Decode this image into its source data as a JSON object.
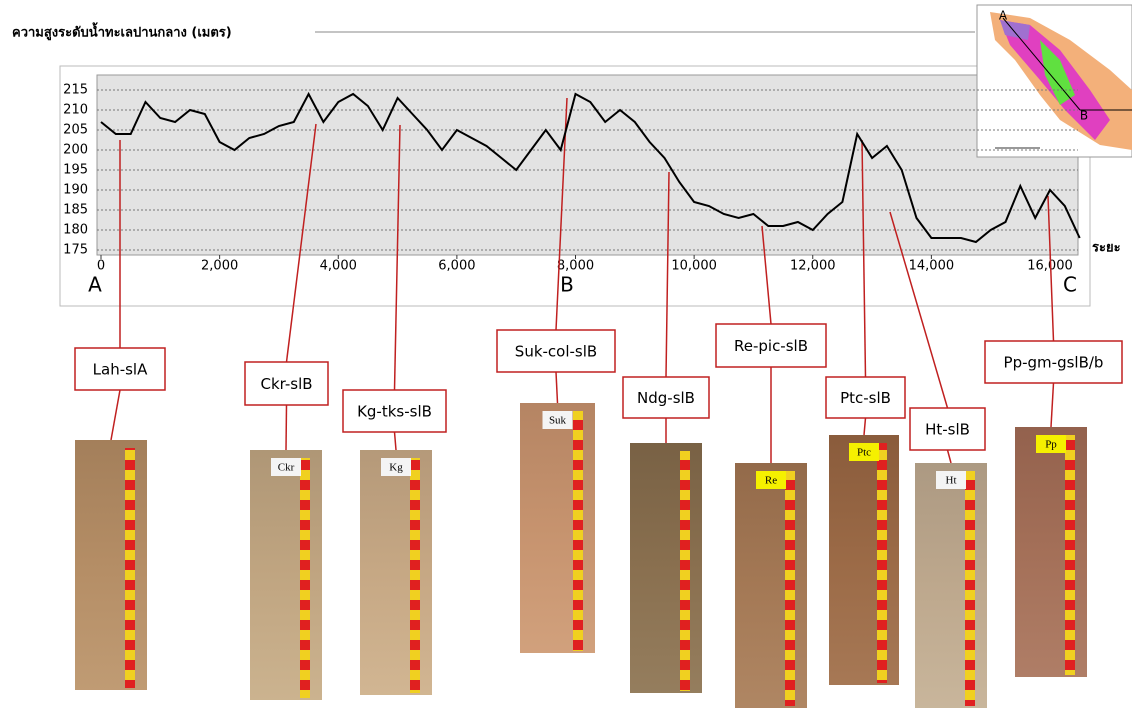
{
  "chart_data": {
    "type": "line",
    "title": "ความสูงระดับน้ำทะเลปานกลาง (เมตร)",
    "x_label": "ระยะ",
    "point_labels": [
      "A",
      "B",
      "C"
    ],
    "map_labels": [
      "A",
      "B"
    ],
    "xlim": [
      0,
      16500
    ],
    "ylim": [
      175,
      217
    ],
    "xticks": [
      0,
      {
        "value": 2000,
        "label": "2,000"
      },
      {
        "value": 4000,
        "label": "4,000"
      },
      {
        "value": 6000,
        "label": "6,000"
      },
      {
        "value": 8000,
        "label": "8,000"
      },
      {
        "value": 10000,
        "label": "10,000"
      },
      {
        "value": 12000,
        "label": "12,000"
      },
      {
        "value": 14000,
        "label": "14,000"
      },
      {
        "value": 16000,
        "label": "16,000"
      }
    ],
    "yticks": [
      175,
      180,
      185,
      190,
      195,
      200,
      205,
      210,
      215
    ],
    "grid": true,
    "x": [
      0,
      250,
      500,
      750,
      1000,
      1250,
      1500,
      1750,
      2000,
      2250,
      2500,
      2750,
      3000,
      3250,
      3500,
      3750,
      4000,
      4250,
      4500,
      4750,
      5000,
      5250,
      5500,
      5750,
      6000,
      6250,
      6500,
      6750,
      7000,
      7250,
      7500,
      7750,
      8000,
      8250,
      8500,
      8750,
      9000,
      9250,
      9500,
      9750,
      10000,
      10250,
      10500,
      10750,
      11000,
      11250,
      11500,
      11750,
      12000,
      12250,
      12500,
      12750,
      13000,
      13250,
      13500,
      13750,
      14000,
      14250,
      14500,
      14750,
      15000,
      15250,
      15500,
      15750,
      16000,
      16250,
      16500
    ],
    "series": [
      {
        "color": "#000000",
        "values": [
          207,
          204,
          204,
          212,
          208,
          207,
          210,
          209,
          202,
          200,
          203,
          204,
          206,
          207,
          214,
          207,
          212,
          214,
          211,
          205,
          213,
          209,
          205,
          200,
          205,
          203,
          201,
          198,
          195,
          200,
          205,
          200,
          214,
          212,
          207,
          210,
          207,
          202,
          198,
          192,
          187,
          186,
          184,
          183,
          184,
          181,
          181,
          182,
          180,
          184,
          187,
          204,
          198,
          201,
          195,
          183,
          178,
          178,
          178,
          177,
          180,
          182,
          191,
          183,
          190,
          186,
          178
        ]
      }
    ],
    "soil_profiles": [
      {
        "name": "Lah-slA"
      },
      {
        "name": "Ckr-slB",
        "tag": "Ckr"
      },
      {
        "name": "Kg-tks-slB",
        "tag": "Kg"
      },
      {
        "name": "Suk-col-slB",
        "tag": "Suk"
      },
      {
        "name": "Ndg-slB"
      },
      {
        "name": "Re-pic-slB",
        "tag": "Re"
      },
      {
        "name": "Ptc-slB",
        "tag": "Ptc"
      },
      {
        "name": "Ht-slB",
        "tag": "Ht"
      },
      {
        "name": "Pp-gm-gslB/b",
        "tag": "Pp"
      }
    ]
  }
}
